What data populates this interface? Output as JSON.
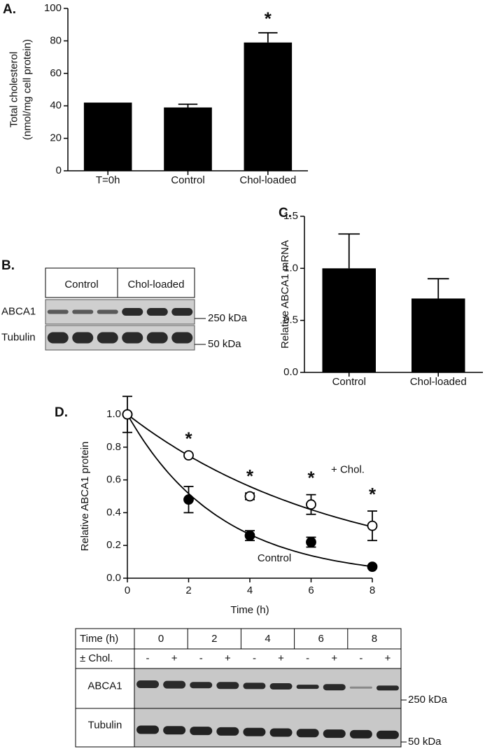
{
  "chart_data": [
    {
      "type": "bar",
      "panel_label": "A.",
      "ylabel": [
        "Total cholesterol",
        "(nmol/mg cell protein)"
      ],
      "categories": [
        "T=0h",
        "Control",
        "Chol-loaded"
      ],
      "values": [
        42,
        39,
        79
      ],
      "errors": [
        null,
        2,
        6
      ],
      "color": "#000000",
      "ylim": [
        0,
        100
      ],
      "yticks": [
        0,
        20,
        40,
        60,
        80,
        100
      ],
      "annotations": [
        {
          "category": 2,
          "text": "*"
        }
      ]
    },
    {
      "type": "bar",
      "panel_label": "C.",
      "ylabel": [
        "Relative ABCA1 mRNA"
      ],
      "categories": [
        "Control",
        "Chol-loaded"
      ],
      "values": [
        1.0,
        0.71
      ],
      "errors": [
        0.33,
        0.19
      ],
      "color": "#000000",
      "ylim": [
        0,
        1.5
      ],
      "yticks": [
        {
          "value": 0,
          "label": "0.0"
        },
        {
          "value": 0.5,
          "label": "0.5"
        },
        {
          "value": 1,
          "label": "1.0"
        },
        {
          "value": 1.5,
          "label": "1.5"
        }
      ]
    },
    {
      "type": "scatter",
      "panel_label": "D.",
      "xlabel": "Time (h)",
      "ylabel": [
        "Relative ABCA1 protein"
      ],
      "x": [
        0,
        2,
        4,
        6,
        8
      ],
      "series": [
        {
          "name": "Control",
          "color": "#000000",
          "filled": true,
          "values": [
            1.0,
            0.48,
            0.26,
            0.22,
            0.07
          ],
          "errors": [
            0.11,
            0.08,
            0.03,
            0.03,
            null
          ],
          "fit_rate": 0.33
        },
        {
          "name": "+ Chol.",
          "color": "#000000",
          "filled": false,
          "values": [
            1.0,
            0.75,
            0.5,
            0.45,
            0.32
          ],
          "errors": [
            null,
            null,
            0.02,
            0.06,
            0.09
          ],
          "fit_rate": 0.145
        }
      ],
      "xlim": [
        0,
        8
      ],
      "xticks": [
        0,
        2,
        4,
        6,
        8
      ],
      "ylim": [
        0,
        1.0
      ],
      "yticks": [
        {
          "value": 0,
          "label": "0.0"
        },
        {
          "value": 0.2,
          "label": "0.2"
        },
        {
          "value": 0.4,
          "label": "0.4"
        },
        {
          "value": 0.6,
          "label": "0.6"
        },
        {
          "value": 0.8,
          "label": "0.8"
        },
        {
          "value": 1.0,
          "label": "1.0"
        }
      ],
      "annotations": [
        {
          "x": 2,
          "text": "*"
        },
        {
          "x": 4,
          "text": "*"
        },
        {
          "x": 6,
          "text": "*"
        },
        {
          "x": 8,
          "text": "*"
        }
      ]
    }
  ],
  "blots": [
    {
      "panel_label": "B.",
      "groups": [
        "Control",
        "Chol-loaded"
      ],
      "rows": [
        "ABCA1",
        "Tubulin"
      ],
      "markers": [
        "250 kDa",
        "50 kDa"
      ]
    },
    {
      "time_label": "Time (h)",
      "times": [
        "0",
        "2",
        "4",
        "6",
        "8"
      ],
      "chol_label": "± Chol.",
      "signs": [
        "-",
        "+",
        "-",
        "+",
        "-",
        "+",
        "-",
        "+",
        "-",
        "+"
      ],
      "rows": [
        "ABCA1",
        "Tubulin"
      ],
      "markers": [
        "250 kDa",
        "50 kDa"
      ]
    }
  ]
}
